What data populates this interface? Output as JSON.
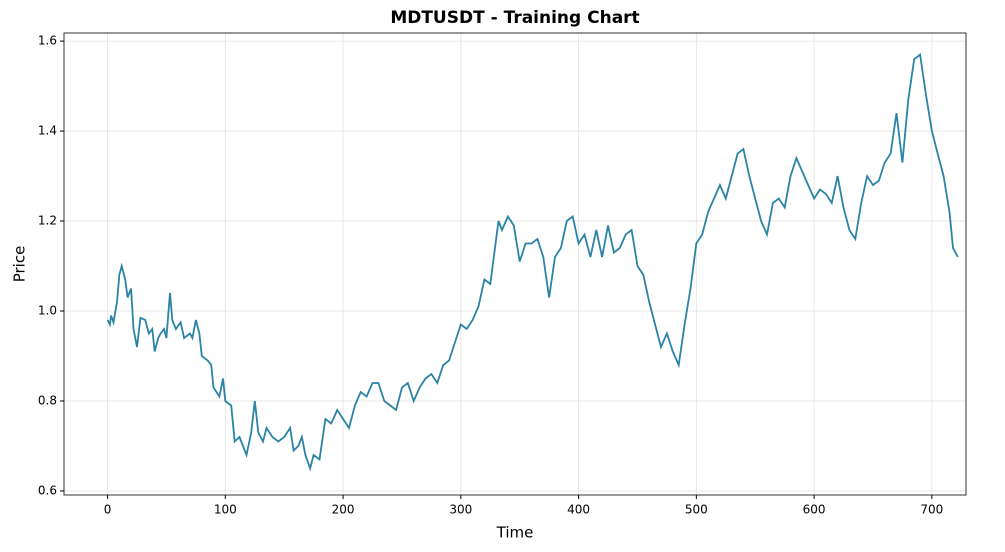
{
  "chart_data": {
    "type": "line",
    "title": "MDTUSDT - Training Chart",
    "x_label": "Time",
    "y_label": "Price",
    "x": [
      0,
      2,
      3,
      5,
      8,
      10,
      12,
      15,
      17,
      20,
      22,
      25,
      28,
      32,
      35,
      38,
      40,
      43,
      45,
      48,
      50,
      53,
      55,
      58,
      62,
      65,
      70,
      72,
      75,
      78,
      80,
      85,
      88,
      90,
      95,
      98,
      100,
      105,
      108,
      112,
      115,
      118,
      122,
      125,
      128,
      132,
      135,
      140,
      145,
      150,
      155,
      158,
      162,
      165,
      168,
      172,
      175,
      180,
      185,
      190,
      195,
      200,
      205,
      210,
      215,
      220,
      225,
      230,
      235,
      240,
      245,
      250,
      255,
      260,
      265,
      270,
      275,
      280,
      285,
      290,
      295,
      300,
      305,
      310,
      315,
      320,
      325,
      328,
      332,
      335,
      340,
      345,
      350,
      355,
      360,
      365,
      370,
      375,
      380,
      385,
      390,
      395,
      400,
      405,
      410,
      415,
      420,
      425,
      430,
      435,
      440,
      445,
      450,
      455,
      460,
      465,
      470,
      475,
      480,
      485,
      490,
      495,
      500,
      505,
      510,
      515,
      520,
      525,
      530,
      535,
      540,
      545,
      550,
      555,
      560,
      565,
      570,
      575,
      580,
      585,
      590,
      595,
      600,
      605,
      610,
      615,
      620,
      625,
      630,
      635,
      640,
      645,
      650,
      655,
      660,
      665,
      670,
      675,
      680,
      685,
      690,
      695,
      700,
      705,
      710,
      715,
      718,
      722
    ],
    "series": [
      {
        "name": "Price",
        "color": "#2b83a5",
        "values": [
          0.98,
          0.97,
          0.99,
          0.975,
          1.02,
          1.08,
          1.1,
          1.07,
          1.03,
          1.05,
          0.96,
          0.92,
          0.985,
          0.98,
          0.95,
          0.96,
          0.91,
          0.94,
          0.95,
          0.96,
          0.94,
          1.04,
          0.98,
          0.96,
          0.975,
          0.94,
          0.95,
          0.94,
          0.98,
          0.95,
          0.9,
          0.89,
          0.88,
          0.83,
          0.81,
          0.85,
          0.8,
          0.79,
          0.71,
          0.72,
          0.7,
          0.68,
          0.73,
          0.8,
          0.73,
          0.71,
          0.74,
          0.72,
          0.71,
          0.72,
          0.74,
          0.69,
          0.7,
          0.72,
          0.68,
          0.65,
          0.68,
          0.67,
          0.76,
          0.75,
          0.78,
          0.76,
          0.74,
          0.79,
          0.82,
          0.81,
          0.84,
          0.84,
          0.8,
          0.79,
          0.78,
          0.83,
          0.84,
          0.8,
          0.83,
          0.85,
          0.86,
          0.84,
          0.88,
          0.89,
          0.93,
          0.97,
          0.96,
          0.98,
          1.01,
          1.07,
          1.06,
          1.12,
          1.2,
          1.18,
          1.21,
          1.19,
          1.11,
          1.15,
          1.15,
          1.16,
          1.12,
          1.03,
          1.12,
          1.14,
          1.2,
          1.21,
          1.15,
          1.17,
          1.12,
          1.18,
          1.12,
          1.19,
          1.13,
          1.14,
          1.17,
          1.18,
          1.1,
          1.08,
          1.02,
          0.97,
          0.92,
          0.95,
          0.91,
          0.88,
          0.97,
          1.05,
          1.15,
          1.17,
          1.22,
          1.25,
          1.28,
          1.25,
          1.3,
          1.35,
          1.36,
          1.3,
          1.25,
          1.2,
          1.17,
          1.24,
          1.25,
          1.23,
          1.3,
          1.34,
          1.31,
          1.28,
          1.25,
          1.27,
          1.26,
          1.24,
          1.3,
          1.23,
          1.18,
          1.16,
          1.24,
          1.3,
          1.28,
          1.29,
          1.33,
          1.35,
          1.44,
          1.33,
          1.47,
          1.56,
          1.57,
          1.48,
          1.4,
          1.35,
          1.3,
          1.22,
          1.14,
          1.12
        ]
      }
    ],
    "xlim": [
      -37,
      729
    ],
    "xticks": [
      0,
      100,
      200,
      300,
      400,
      500,
      600,
      700
    ],
    "ylim": [
      0.591,
      1.618
    ],
    "yticks": [
      {
        "value": 0.6,
        "label": "0.6"
      },
      {
        "value": 0.8,
        "label": "0.8"
      },
      {
        "value": 1.0,
        "label": "1.0"
      },
      {
        "value": 1.2,
        "label": "1.2"
      },
      {
        "value": 1.4,
        "label": "1.4"
      },
      {
        "value": 1.6,
        "label": "1.6"
      }
    ],
    "grid": true
  }
}
